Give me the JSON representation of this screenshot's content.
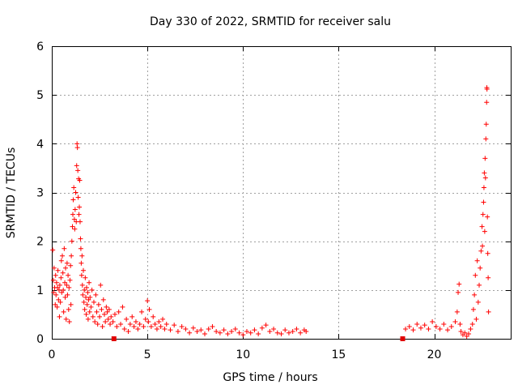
{
  "chart_data": {
    "type": "scatter",
    "title": "Day 330 of 2022, SRMTID for receiver salu",
    "xlabel": "GPS time / hours",
    "ylabel": "SRMTID / TECUs",
    "xlim": [
      0,
      24
    ],
    "ylim": [
      0,
      6
    ],
    "xticks": [
      0,
      5,
      10,
      15,
      20
    ],
    "yticks": [
      0,
      1,
      2,
      3,
      4,
      5,
      6
    ],
    "grid": true,
    "marker": "plus",
    "color": "#ff0000",
    "series": [
      {
        "name": "SRMTID",
        "points": [
          [
            0.05,
            1.82
          ],
          [
            0.08,
            1.2
          ],
          [
            0.1,
            0.95
          ],
          [
            0.12,
            1.45
          ],
          [
            0.15,
            1.05
          ],
          [
            0.18,
            0.7
          ],
          [
            0.2,
            1.3
          ],
          [
            0.22,
            0.9
          ],
          [
            0.25,
            1.15
          ],
          [
            0.28,
            0.65
          ],
          [
            0.3,
            1.05
          ],
          [
            0.32,
            1.4
          ],
          [
            0.35,
            0.8
          ],
          [
            0.38,
            1.0
          ],
          [
            0.4,
            0.45
          ],
          [
            0.42,
            1.1
          ],
          [
            0.45,
            0.75
          ],
          [
            0.48,
            1.25
          ],
          [
            0.5,
            1.6
          ],
          [
            0.52,
            0.95
          ],
          [
            0.55,
            1.7
          ],
          [
            0.58,
            1.35
          ],
          [
            0.6,
            1.0
          ],
          [
            0.62,
            0.55
          ],
          [
            0.65,
            1.85
          ],
          [
            0.68,
            1.15
          ],
          [
            0.7,
            0.85
          ],
          [
            0.72,
            1.45
          ],
          [
            0.75,
            0.4
          ],
          [
            0.78,
            1.1
          ],
          [
            0.8,
            1.55
          ],
          [
            0.82,
            0.9
          ],
          [
            0.85,
            1.3
          ],
          [
            0.88,
            0.6
          ],
          [
            0.9,
            1.05
          ],
          [
            0.92,
            0.35
          ],
          [
            0.95,
            1.2
          ],
          [
            0.98,
            1.5
          ],
          [
            1.0,
            0.7
          ],
          [
            1.02,
            1.7
          ],
          [
            1.05,
            2.0
          ],
          [
            1.08,
            2.3
          ],
          [
            1.1,
            2.55
          ],
          [
            1.12,
            2.85
          ],
          [
            1.15,
            3.1
          ],
          [
            1.18,
            2.45
          ],
          [
            1.2,
            2.25
          ],
          [
            1.22,
            2.65
          ],
          [
            1.25,
            3.0
          ],
          [
            1.28,
            2.4
          ],
          [
            1.3,
            3.55
          ],
          [
            1.32,
            4.0
          ],
          [
            1.34,
            3.92
          ],
          [
            1.36,
            3.45
          ],
          [
            1.38,
            2.9
          ],
          [
            1.4,
            3.28
          ],
          [
            1.42,
            2.55
          ],
          [
            1.44,
            2.7
          ],
          [
            1.46,
            3.25
          ],
          [
            1.48,
            2.4
          ],
          [
            1.5,
            2.05
          ],
          [
            1.52,
            1.85
          ],
          [
            1.54,
            1.55
          ],
          [
            1.56,
            1.3
          ],
          [
            1.58,
            1.7
          ],
          [
            1.6,
            1.1
          ],
          [
            1.62,
            0.9
          ],
          [
            1.65,
            1.4
          ],
          [
            1.68,
            0.75
          ],
          [
            1.7,
            1.0
          ],
          [
            1.72,
            0.6
          ],
          [
            1.75,
            1.25
          ],
          [
            1.78,
            0.85
          ],
          [
            1.8,
            0.5
          ],
          [
            1.82,
            1.05
          ],
          [
            1.85,
            0.7
          ],
          [
            1.88,
            0.95
          ],
          [
            1.9,
            0.4
          ],
          [
            1.92,
            0.8
          ],
          [
            1.95,
            1.15
          ],
          [
            1.98,
            0.55
          ],
          [
            2.0,
            0.85
          ],
          [
            2.05,
            0.65
          ],
          [
            2.1,
            1.0
          ],
          [
            2.15,
            0.45
          ],
          [
            2.2,
            0.75
          ],
          [
            2.25,
            0.35
          ],
          [
            2.3,
            0.9
          ],
          [
            2.35,
            0.55
          ],
          [
            2.4,
            0.3
          ],
          [
            2.45,
            0.7
          ],
          [
            2.5,
            0.45
          ],
          [
            2.55,
            1.1
          ],
          [
            2.6,
            0.6
          ],
          [
            2.65,
            0.25
          ],
          [
            2.7,
            0.8
          ],
          [
            2.75,
            0.5
          ],
          [
            2.8,
            0.35
          ],
          [
            2.85,
            0.65
          ],
          [
            2.9,
            0.55
          ],
          [
            2.95,
            0.4
          ],
          [
            3.0,
            0.6
          ],
          [
            3.05,
            0.3
          ],
          [
            3.1,
            0.45
          ],
          [
            3.2,
            0.35
          ],
          [
            3.3,
            0.5
          ],
          [
            3.4,
            0.25
          ],
          [
            3.5,
            0.55
          ],
          [
            3.6,
            0.3
          ],
          [
            3.7,
            0.65
          ],
          [
            3.8,
            0.2
          ],
          [
            3.9,
            0.4
          ],
          [
            4.0,
            0.15
          ],
          [
            4.1,
            0.3
          ],
          [
            4.2,
            0.45
          ],
          [
            4.3,
            0.25
          ],
          [
            4.4,
            0.35
          ],
          [
            4.5,
            0.2
          ],
          [
            4.6,
            0.3
          ],
          [
            4.7,
            0.55
          ],
          [
            4.8,
            0.25
          ],
          [
            4.9,
            0.4
          ],
          [
            5.0,
            0.78
          ],
          [
            5.05,
            0.35
          ],
          [
            5.1,
            0.6
          ],
          [
            5.2,
            0.25
          ],
          [
            5.3,
            0.45
          ],
          [
            5.4,
            0.3
          ],
          [
            5.5,
            0.2
          ],
          [
            5.6,
            0.35
          ],
          [
            5.7,
            0.25
          ],
          [
            5.8,
            0.4
          ],
          [
            5.9,
            0.2
          ],
          [
            6.0,
            0.3
          ],
          [
            6.2,
            0.18
          ],
          [
            6.4,
            0.28
          ],
          [
            6.6,
            0.15
          ],
          [
            6.8,
            0.25
          ],
          [
            7.0,
            0.2
          ],
          [
            7.2,
            0.12
          ],
          [
            7.4,
            0.22
          ],
          [
            7.6,
            0.15
          ],
          [
            7.8,
            0.18
          ],
          [
            8.0,
            0.1
          ],
          [
            8.2,
            0.2
          ],
          [
            8.4,
            0.25
          ],
          [
            8.6,
            0.15
          ],
          [
            8.8,
            0.12
          ],
          [
            9.0,
            0.18
          ],
          [
            9.2,
            0.1
          ],
          [
            9.4,
            0.15
          ],
          [
            9.6,
            0.2
          ],
          [
            9.8,
            0.12
          ],
          [
            10.0,
            0.08
          ],
          [
            10.2,
            0.15
          ],
          [
            10.4,
            0.12
          ],
          [
            10.6,
            0.18
          ],
          [
            10.8,
            0.1
          ],
          [
            11.0,
            0.22
          ],
          [
            11.2,
            0.28
          ],
          [
            11.4,
            0.15
          ],
          [
            11.6,
            0.2
          ],
          [
            11.8,
            0.12
          ],
          [
            12.0,
            0.1
          ],
          [
            12.2,
            0.18
          ],
          [
            12.4,
            0.12
          ],
          [
            12.6,
            0.15
          ],
          [
            12.8,
            0.2
          ],
          [
            13.0,
            0.12
          ],
          [
            13.2,
            0.18
          ],
          [
            13.3,
            0.15
          ],
          [
            18.5,
            0.2
          ],
          [
            18.7,
            0.25
          ],
          [
            18.9,
            0.18
          ],
          [
            19.1,
            0.3
          ],
          [
            19.3,
            0.22
          ],
          [
            19.5,
            0.28
          ],
          [
            19.7,
            0.2
          ],
          [
            19.9,
            0.35
          ],
          [
            20.1,
            0.25
          ],
          [
            20.3,
            0.2
          ],
          [
            20.5,
            0.3
          ],
          [
            20.7,
            0.18
          ],
          [
            20.9,
            0.25
          ],
          [
            21.1,
            0.35
          ],
          [
            21.2,
            0.55
          ],
          [
            21.25,
            0.95
          ],
          [
            21.3,
            1.12
          ],
          [
            21.35,
            0.3
          ],
          [
            21.4,
            0.15
          ],
          [
            21.5,
            0.08
          ],
          [
            21.6,
            0.12
          ],
          [
            21.7,
            0.05
          ],
          [
            21.8,
            0.1
          ],
          [
            21.9,
            0.2
          ],
          [
            22.0,
            0.3
          ],
          [
            22.05,
            0.6
          ],
          [
            22.1,
            0.9
          ],
          [
            22.15,
            1.3
          ],
          [
            22.2,
            0.4
          ],
          [
            22.25,
            1.6
          ],
          [
            22.3,
            0.75
          ],
          [
            22.35,
            1.1
          ],
          [
            22.4,
            1.45
          ],
          [
            22.45,
            1.8
          ],
          [
            22.5,
            2.3
          ],
          [
            22.52,
            1.9
          ],
          [
            22.55,
            2.55
          ],
          [
            22.58,
            2.8
          ],
          [
            22.6,
            3.1
          ],
          [
            22.62,
            3.4
          ],
          [
            22.64,
            2.2
          ],
          [
            22.66,
            3.7
          ],
          [
            22.68,
            3.3
          ],
          [
            22.7,
            4.1
          ],
          [
            22.72,
            4.4
          ],
          [
            22.74,
            4.85
          ],
          [
            22.75,
            5.15
          ],
          [
            22.76,
            5.12
          ],
          [
            22.78,
            2.5
          ],
          [
            22.8,
            1.75
          ],
          [
            22.82,
            1.25
          ],
          [
            22.84,
            0.55
          ]
        ]
      }
    ],
    "markers_square": [
      [
        3.25,
        0.0
      ],
      [
        18.35,
        0.0
      ]
    ]
  }
}
